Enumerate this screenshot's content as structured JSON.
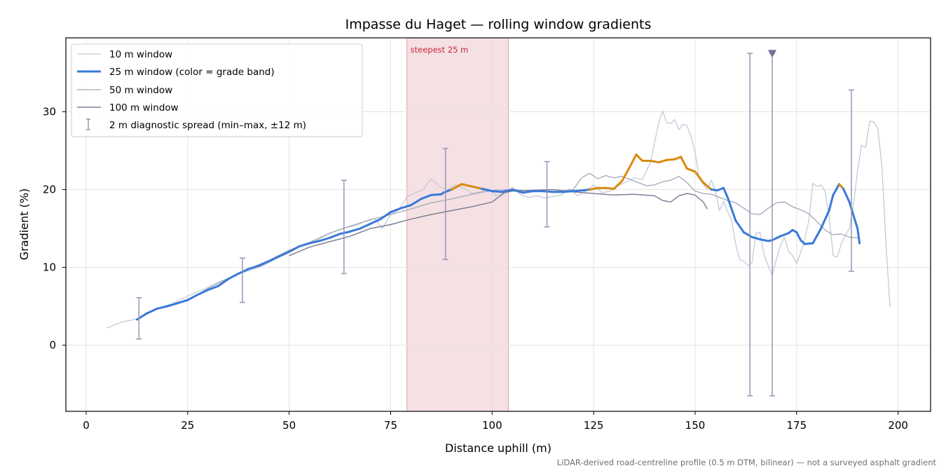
{
  "chart_data": {
    "type": "line",
    "title": "Impasse du Haget — rolling window gradients",
    "xlabel": "Distance uphill (m)",
    "ylabel": "Gradient (%)",
    "xlim": [
      -5,
      208
    ],
    "ylim": [
      -8.5,
      39.5
    ],
    "xticks": [
      0,
      25,
      50,
      75,
      100,
      125,
      150,
      175,
      200
    ],
    "yticks": [
      0,
      10,
      20,
      30
    ],
    "grid": true,
    "legend_position": "top-left",
    "footnote": "LiDAR-derived road-centreline profile (0.5 m DTM, bilinear) — not a surveyed asphalt gradient",
    "highlight_band": {
      "label": "steepest 25 m",
      "x_start": 79,
      "x_end": 104,
      "color": "#e8b4bd"
    },
    "grade_band_colors": {
      "below_20": "#3a78d8",
      "20_to_25": "#d98a0b"
    },
    "series": [
      {
        "name": "10 m window",
        "color": "#c3cad7",
        "x": [
          5,
          7,
          9,
          11,
          13,
          15,
          17,
          19,
          21,
          23,
          25,
          27,
          29,
          31,
          33,
          35,
          37,
          39,
          41,
          43,
          45,
          47,
          49,
          51,
          53,
          55,
          57,
          59,
          61,
          63,
          65,
          67,
          69,
          71,
          73,
          75,
          77,
          79,
          81,
          83,
          85,
          87,
          89,
          91,
          93,
          95,
          97,
          99,
          101,
          103,
          105,
          107,
          109,
          111,
          113,
          115,
          117,
          119,
          121,
          123,
          125,
          127,
          129,
          131,
          133,
          135,
          137,
          139,
          141,
          142,
          143,
          144,
          145,
          146,
          147,
          148,
          149,
          150,
          151,
          152,
          153,
          154,
          155,
          156,
          157,
          158,
          159,
          160,
          161,
          162,
          163,
          164,
          165,
          166,
          167,
          168,
          169,
          170,
          171,
          172,
          173,
          174,
          175,
          176,
          177,
          178,
          179,
          180,
          181,
          182,
          183,
          184,
          185,
          186,
          187,
          188,
          189,
          190,
          191,
          192,
          193,
          194,
          195,
          196,
          197,
          198
        ],
        "values": [
          2.2,
          2.6,
          3.0,
          3.2,
          3.5,
          4.0,
          4.5,
          5.0,
          5.3,
          5.8,
          6.3,
          6.8,
          7.2,
          7.7,
          8.2,
          8.6,
          9.0,
          9.4,
          9.7,
          10.1,
          10.6,
          11.2,
          11.8,
          12.3,
          12.8,
          13.2,
          13.5,
          14.1,
          14.6,
          15.0,
          15.2,
          15.5,
          16.0,
          16.3,
          15.0,
          16.8,
          17.4,
          19.0,
          19.6,
          20.0,
          21.4,
          20.4,
          20.0,
          20.6,
          20.2,
          19.5,
          19.7,
          20.1,
          19.2,
          19.6,
          20.3,
          19.3,
          19.0,
          19.2,
          18.9,
          19.1,
          19.3,
          20.1,
          19.2,
          19.8,
          20.6,
          19.6,
          19.8,
          20.5,
          21.0,
          21.5,
          21.3,
          23.5,
          28.5,
          30.1,
          28.6,
          28.5,
          29.0,
          27.7,
          28.4,
          28.2,
          26.8,
          24.8,
          21.4,
          20.7,
          20.0,
          21.2,
          19.8,
          17.3,
          18.5,
          17.2,
          16.0,
          13.0,
          11.0,
          10.8,
          10.2,
          10.6,
          14.4,
          14.5,
          11.6,
          10.2,
          9.0,
          11.0,
          12.8,
          13.9,
          12.1,
          11.5,
          10.5,
          11.9,
          13.6,
          16.0,
          20.8,
          20.4,
          20.6,
          19.8,
          16.5,
          11.5,
          11.3,
          13.0,
          14.1,
          15.0,
          18.0,
          22.4,
          25.7,
          25.4,
          28.8,
          28.7,
          27.8,
          23.0,
          13.0,
          4.9
        ]
      },
      {
        "name": "25 m window (color = grade band)",
        "color": "#3a78d8",
        "x": [
          12.5,
          15,
          17.5,
          20,
          22.5,
          25,
          27.5,
          30,
          32.5,
          35,
          37.5,
          40,
          42.5,
          45,
          47.5,
          50,
          52.5,
          55,
          57.5,
          60,
          62.5,
          65,
          67.5,
          70,
          72.5,
          75,
          77.5,
          80,
          82.5,
          85,
          87.5,
          88,
          90,
          92.5,
          95,
          97.5,
          100,
          102.5,
          105,
          107.5,
          110,
          112.5,
          115,
          117.5,
          120,
          122.5,
          124,
          126,
          128,
          130,
          132,
          134,
          135.5,
          137,
          139,
          141,
          143,
          145,
          146.5,
          148,
          150,
          152,
          154,
          155.5,
          157,
          158,
          160,
          162,
          164,
          166,
          168,
          169,
          171,
          173,
          174,
          175,
          176,
          177,
          179,
          181,
          183,
          184,
          185.5,
          186.5,
          188,
          190,
          190.5
        ],
        "values": [
          3.3,
          4.1,
          4.7,
          5.0,
          5.4,
          5.8,
          6.5,
          7.1,
          7.6,
          8.5,
          9.2,
          9.8,
          10.2,
          10.8,
          11.4,
          12.0,
          12.7,
          13.1,
          13.4,
          13.8,
          14.3,
          14.6,
          15.0,
          15.6,
          16.2,
          17.1,
          17.6,
          18.0,
          18.8,
          19.3,
          19.4,
          19.6,
          20.0,
          20.7,
          20.4,
          20.1,
          19.8,
          19.7,
          20.0,
          19.6,
          19.8,
          19.8,
          19.7,
          19.7,
          19.8,
          19.9,
          20.0,
          20.2,
          20.2,
          20.1,
          21.1,
          23.0,
          24.5,
          23.7,
          23.7,
          23.5,
          23.8,
          23.9,
          24.2,
          22.7,
          22.3,
          20.9,
          20.0,
          19.9,
          20.2,
          19.0,
          16.0,
          14.5,
          13.9,
          13.6,
          13.4,
          13.5,
          14.0,
          14.4,
          14.8,
          14.5,
          13.5,
          13.0,
          13.1,
          15.0,
          17.3,
          19.3,
          20.7,
          20.1,
          18.4,
          15.0,
          13.1
        ]
      },
      {
        "name": "50 m window",
        "color": "#a2a9b8",
        "x": [
          25,
          30,
          35,
          40,
          45,
          50,
          55,
          60,
          65,
          70,
          75,
          80,
          85,
          90,
          95,
          100,
          105,
          110,
          115,
          120,
          122,
          124,
          126,
          128,
          130,
          132,
          134,
          136,
          138,
          140,
          142,
          144,
          146,
          148,
          150,
          152,
          154,
          156,
          158,
          160,
          162,
          164,
          166,
          168,
          170,
          172,
          174,
          176,
          178,
          180,
          182,
          184,
          186,
          188,
          190
        ],
        "values": [
          5.8,
          7.3,
          8.6,
          9.8,
          10.9,
          12.2,
          13.2,
          14.4,
          15.3,
          16.1,
          16.8,
          17.5,
          18.3,
          18.8,
          19.4,
          19.9,
          20.0,
          19.8,
          19.7,
          20.0,
          21.5,
          22.1,
          21.4,
          21.8,
          21.5,
          21.7,
          21.3,
          20.9,
          20.5,
          20.6,
          21.0,
          21.2,
          21.7,
          20.9,
          19.8,
          19.5,
          19.4,
          19.0,
          18.6,
          18.3,
          17.6,
          16.9,
          16.8,
          17.6,
          18.3,
          18.4,
          17.8,
          17.4,
          16.9,
          15.9,
          14.8,
          14.2,
          14.3,
          13.9,
          13.8
        ]
      },
      {
        "name": "100 m window",
        "color": "#7a8295",
        "x": [
          50,
          55,
          60,
          65,
          70,
          75,
          80,
          85,
          90,
          95,
          100,
          103,
          105,
          110,
          115,
          120,
          125,
          130,
          135,
          140,
          142,
          144,
          146,
          148,
          150,
          152,
          153
        ],
        "values": [
          11.5,
          12.6,
          13.3,
          14.0,
          15.0,
          15.5,
          16.2,
          16.8,
          17.3,
          17.8,
          18.4,
          19.6,
          19.8,
          19.9,
          20.0,
          19.7,
          19.5,
          19.3,
          19.4,
          19.2,
          18.6,
          18.4,
          19.2,
          19.5,
          19.3,
          18.4,
          17.5
        ]
      },
      {
        "name": "2 m diagnostic spread (min–max, ±12 m)",
        "color": "#9b94b4",
        "type": "errorbar",
        "points": [
          {
            "x": 13,
            "min": 0.8,
            "max": 6.1
          },
          {
            "x": 38.5,
            "min": 5.5,
            "max": 11.2
          },
          {
            "x": 63.5,
            "min": 9.2,
            "max": 21.2
          },
          {
            "x": 88.5,
            "min": 11.0,
            "max": 25.3
          },
          {
            "x": 113.5,
            "min": 15.2,
            "max": 23.6
          },
          {
            "x": 163.5,
            "min": -6.5,
            "max": 37.5
          },
          {
            "x": 169,
            "min": -6.5,
            "max": 37.5,
            "clipped_top": true
          },
          {
            "x": 188.5,
            "min": 9.5,
            "max": 32.8
          }
        ]
      }
    ]
  }
}
